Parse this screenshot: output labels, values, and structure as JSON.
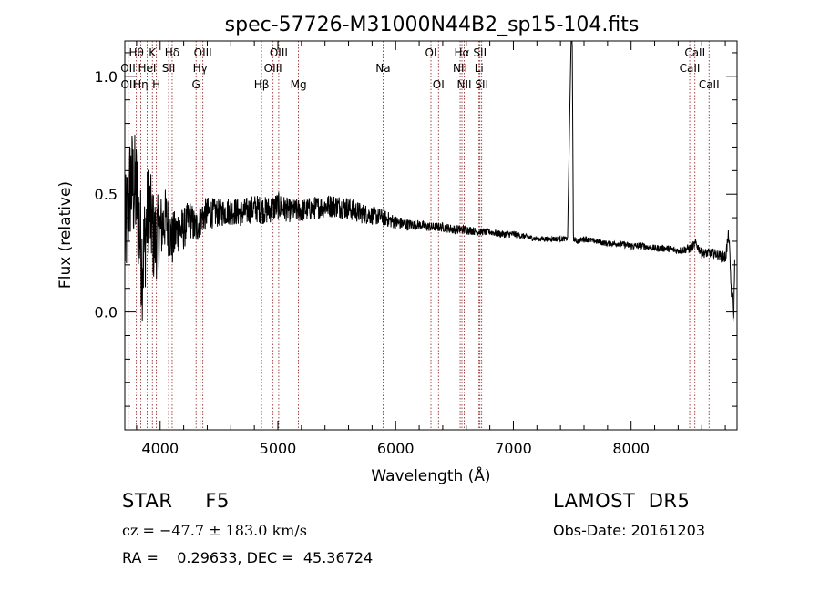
{
  "chart_data": {
    "type": "line",
    "title": "spec-57726-M31000N44B2_sp15-104.fits",
    "xlabel": "Wavelength (Å)",
    "ylabel": "Flux (relative)",
    "xlim": [
      3700,
      8900
    ],
    "ylim": [
      -0.5,
      1.15
    ],
    "xticks": [
      4000,
      5000,
      6000,
      7000,
      8000
    ],
    "yticks": [
      0.0,
      0.5,
      1.0
    ],
    "grid": false,
    "series": [
      {
        "color": "#000000",
        "x": [
          3700,
          3750,
          3800,
          3850,
          3900,
          3950,
          4000,
          4050,
          4100,
          4150,
          4200,
          4250,
          4300,
          4350,
          4400,
          4500,
          4600,
          4700,
          4800,
          4900,
          5000,
          5100,
          5200,
          5300,
          5400,
          5500,
          5600,
          5700,
          5800,
          5900,
          6000,
          6100,
          6200,
          6300,
          6400,
          6500,
          6600,
          6700,
          6800,
          6900,
          7000,
          7100,
          7200,
          7300,
          7400,
          7460,
          7490,
          7500,
          7510,
          7540,
          7600,
          7700,
          7800,
          7900,
          8000,
          8100,
          8200,
          8300,
          8400,
          8500,
          8550,
          8600,
          8700,
          8750,
          8800,
          8830,
          8850,
          8870,
          8880
        ],
        "y": [
          0.3,
          0.55,
          0.5,
          0.2,
          0.45,
          0.3,
          0.35,
          0.4,
          0.3,
          0.35,
          0.35,
          0.4,
          0.35,
          0.4,
          0.42,
          0.42,
          0.43,
          0.42,
          0.44,
          0.43,
          0.45,
          0.43,
          0.43,
          0.44,
          0.45,
          0.45,
          0.44,
          0.42,
          0.41,
          0.4,
          0.38,
          0.37,
          0.37,
          0.36,
          0.36,
          0.35,
          0.35,
          0.34,
          0.34,
          0.33,
          0.33,
          0.32,
          0.31,
          0.31,
          0.31,
          0.31,
          1.15,
          1.15,
          0.31,
          0.3,
          0.31,
          0.3,
          0.29,
          0.29,
          0.28,
          0.28,
          0.27,
          0.27,
          0.26,
          0.27,
          0.29,
          0.25,
          0.25,
          0.24,
          0.23,
          0.33,
          0.1,
          -0.05,
          0.2
        ],
        "noise": [
          0.25,
          0.25,
          0.25,
          0.25,
          0.2,
          0.2,
          0.15,
          0.13,
          0.12,
          0.1,
          0.09,
          0.08,
          0.08,
          0.07,
          0.07,
          0.06,
          0.06,
          0.06,
          0.06,
          0.06,
          0.06,
          0.05,
          0.05,
          0.05,
          0.05,
          0.05,
          0.05,
          0.045,
          0.04,
          0.035,
          0.03,
          0.025,
          0.02,
          0.02,
          0.02,
          0.02,
          0.02,
          0.015,
          0.015,
          0.015,
          0.015,
          0.012,
          0.012,
          0.012,
          0.012,
          0.01,
          0,
          0,
          0.01,
          0.012,
          0.012,
          0.012,
          0.012,
          0.012,
          0.015,
          0.015,
          0.015,
          0.015,
          0.015,
          0.02,
          0.02,
          0.02,
          0.02,
          0.02,
          0.03,
          0.03,
          0.03,
          0.03,
          0.03
        ]
      }
    ],
    "lines": [
      {
        "label": "Hθ",
        "x": 3798,
        "row": 1
      },
      {
        "label": "K",
        "x": 3934,
        "row": 1
      },
      {
        "label": "Hδ",
        "x": 4102,
        "row": 1
      },
      {
        "label": "OIII",
        "x": 4363,
        "row": 1
      },
      {
        "label": "OIII",
        "x": 5007,
        "row": 1
      },
      {
        "label": "OI",
        "x": 6300,
        "row": 1
      },
      {
        "label": "Hα",
        "x": 6563,
        "row": 1
      },
      {
        "label": "SII",
        "x": 6716,
        "row": 1
      },
      {
        "label": "CaII",
        "x": 8542,
        "row": 1
      },
      {
        "label": "OII",
        "x": 3727,
        "row": 2
      },
      {
        "label": "HeI",
        "x": 3889,
        "row": 2
      },
      {
        "label": "SII",
        "x": 4072,
        "row": 2
      },
      {
        "label": "Hγ",
        "x": 4340,
        "row": 2
      },
      {
        "label": "OIII",
        "x": 4959,
        "row": 2
      },
      {
        "label": "Na",
        "x": 5893,
        "row": 2
      },
      {
        "label": "NII",
        "x": 6548,
        "row": 2
      },
      {
        "label": "Li",
        "x": 6708,
        "row": 2
      },
      {
        "label": "CaII",
        "x": 8498,
        "row": 2
      },
      {
        "label": "OII",
        "x": 3729,
        "row": 3
      },
      {
        "label": "Hη",
        "x": 3835,
        "row": 3
      },
      {
        "label": "H",
        "x": 3968,
        "row": 3
      },
      {
        "label": "G",
        "x": 4305,
        "row": 3
      },
      {
        "label": "Hβ",
        "x": 4861,
        "row": 3
      },
      {
        "label": "Mg",
        "x": 5175,
        "row": 3
      },
      {
        "label": "OI",
        "x": 6364,
        "row": 3
      },
      {
        "label": "NII",
        "x": 6583,
        "row": 3
      },
      {
        "label": "SII",
        "x": 6731,
        "row": 3
      },
      {
        "label": "CaII",
        "x": 8662,
        "row": 3
      }
    ]
  },
  "info": {
    "object_class": "STAR     F5",
    "survey": "LAMOST  DR5",
    "cz": "cz = −47.7 ± 183.0 km/s",
    "obs_date": "Obs-Date: 20161203",
    "radec": "RA =    0.29633, DEC =  45.36724"
  }
}
